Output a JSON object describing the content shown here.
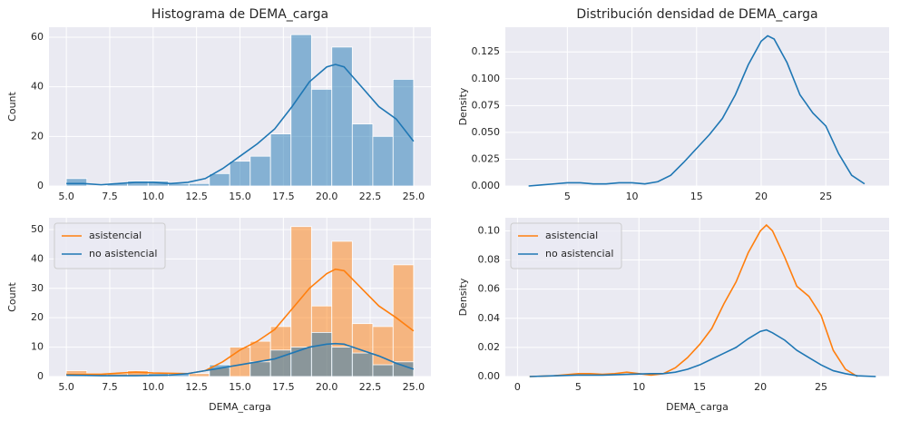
{
  "chart_data": [
    {
      "type": "histogram",
      "title": "Histograma de DEMA_carga",
      "ylabel": "Count",
      "bins": [
        5,
        6.18,
        7.35,
        8.53,
        9.71,
        10.88,
        12.06,
        13.24,
        14.41,
        15.59,
        16.76,
        17.94,
        19.12,
        20.29,
        21.47,
        22.65,
        23.82,
        25
      ],
      "values": [
        3,
        0,
        1,
        2,
        2,
        1,
        1,
        5,
        10,
        12,
        21,
        61,
        39,
        56,
        25,
        20,
        43
      ],
      "color": "#1f77b4",
      "line": {
        "x": [
          5,
          6,
          7,
          8,
          9,
          10,
          11,
          12,
          13,
          14,
          15,
          16,
          17,
          18,
          19,
          20,
          20.5,
          21,
          22,
          23,
          24,
          25
        ],
        "values": [
          1,
          1,
          0.5,
          1,
          1.5,
          1.5,
          1,
          1.5,
          3,
          7,
          12,
          17,
          23,
          32,
          42,
          48,
          49,
          48,
          40,
          32,
          27,
          18
        ]
      },
      "xlim": [
        4,
        26
      ],
      "ylim": [
        0,
        64
      ],
      "xticks": [
        {
          "value": 5,
          "label": "5.0"
        },
        7.5,
        {
          "value": 10,
          "label": "10.0"
        },
        12.5,
        {
          "value": 15,
          "label": "15.0"
        },
        17.5,
        {
          "value": 20,
          "label": "20.0"
        },
        22.5,
        {
          "value": 25,
          "label": "25.0"
        }
      ],
      "yticks": [
        0,
        20,
        40,
        60
      ],
      "grid": true
    },
    {
      "type": "density",
      "title": "Distribución densidad de DEMA_carga",
      "ylabel": "Density",
      "x": [
        2,
        3,
        4,
        5,
        6,
        7,
        8,
        9,
        10,
        11,
        12,
        13,
        14,
        15,
        16,
        17,
        18,
        19,
        20,
        20.5,
        21,
        22,
        23,
        24,
        25,
        26,
        27,
        28
      ],
      "values": [
        0,
        0.001,
        0.002,
        0.003,
        0.003,
        0.002,
        0.002,
        0.003,
        0.003,
        0.002,
        0.004,
        0.01,
        0.022,
        0.035,
        0.048,
        0.063,
        0.085,
        0.113,
        0.135,
        0.14,
        0.137,
        0.115,
        0.085,
        0.068,
        0.056,
        0.03,
        0.01,
        0.002
      ],
      "color": "#1f77b4",
      "xlim": [
        0.2,
        29.9
      ],
      "ylim": [
        0,
        0.148
      ],
      "xticks": [
        5,
        10,
        15,
        20,
        25
      ],
      "yticks": [
        {
          "value": 0,
          "label": "0.000"
        },
        0.025,
        {
          "value": 0.05,
          "label": "0.050"
        },
        0.075,
        {
          "value": 0.1,
          "label": "0.100"
        },
        0.125
      ],
      "grid": true
    },
    {
      "type": "histogram",
      "xlabel": "DEMA_carga",
      "ylabel": "Count",
      "legend": "upper left",
      "bins": [
        5,
        6.18,
        7.35,
        8.53,
        9.71,
        10.88,
        12.06,
        13.24,
        14.41,
        15.59,
        16.76,
        17.94,
        19.12,
        20.29,
        21.47,
        22.65,
        23.82,
        25
      ],
      "series": [
        {
          "name": "asistencial",
          "color": "#ff7f0e",
          "values": [
            2,
            1,
            1,
            2,
            1,
            0,
            1,
            3,
            10,
            12,
            17,
            51,
            24,
            46,
            18,
            17,
            38
          ],
          "line": {
            "x": [
              5,
              7,
              9,
              10,
              12,
              13,
              14,
              15,
              16,
              17,
              18,
              19,
              20,
              20.5,
              21,
              22,
              23,
              24,
              25
            ],
            "values": [
              0.8,
              0.8,
              1.5,
              1.2,
              1,
              2,
              5,
              9,
              12,
              16,
              23,
              30,
              35,
              36.5,
              36,
              30,
              24,
              20,
              15.5
            ]
          }
        },
        {
          "name": "no asistencial",
          "color": "#1f77b4",
          "values": [
            1,
            0,
            0,
            0,
            1,
            1,
            0,
            4,
            0,
            5,
            9,
            10,
            15,
            10,
            8,
            4,
            5
          ],
          "line": {
            "x": [
              5,
              7,
              9,
              11,
              12,
              13,
              14,
              15,
              16,
              17,
              18,
              19,
              20,
              20.5,
              21,
              22,
              23,
              24,
              25
            ],
            "values": [
              0.5,
              0.3,
              0.3,
              0.5,
              1,
              2,
              3,
              4,
              5,
              6,
              8,
              10,
              11,
              11.2,
              11,
              9,
              7,
              4.5,
              2.5
            ]
          }
        }
      ],
      "xlim": [
        4,
        26
      ],
      "ylim": [
        0,
        54
      ],
      "xticks": [
        {
          "value": 5,
          "label": "5.0"
        },
        7.5,
        {
          "value": 10,
          "label": "10.0"
        },
        12.5,
        {
          "value": 15,
          "label": "15.0"
        },
        17.5,
        {
          "value": 20,
          "label": "20.0"
        },
        22.5,
        {
          "value": 25,
          "label": "25.0"
        }
      ],
      "yticks": [
        0,
        10,
        20,
        30,
        40,
        50
      ],
      "grid": true
    },
    {
      "type": "density",
      "xlabel": "DEMA_carga",
      "ylabel": "Density",
      "legend": "upper left",
      "series": [
        {
          "name": "asistencial",
          "color": "#ff7f0e",
          "x": [
            1,
            3,
            5,
            6,
            7,
            8,
            9,
            10,
            11,
            12,
            13,
            14,
            15,
            16,
            17,
            18,
            19,
            20,
            20.5,
            21,
            22,
            23,
            24,
            25,
            26,
            27,
            28
          ],
          "values": [
            0,
            0.0005,
            0.002,
            0.002,
            0.0015,
            0.002,
            0.003,
            0.002,
            0.001,
            0.002,
            0.006,
            0.013,
            0.022,
            0.033,
            0.05,
            0.065,
            0.085,
            0.1,
            0.104,
            0.1,
            0.082,
            0.062,
            0.055,
            0.042,
            0.018,
            0.005,
            0
          ]
        },
        {
          "name": "no asistencial",
          "color": "#1f77b4",
          "x": [
            1,
            3,
            5,
            7,
            9,
            11,
            12,
            13,
            14,
            15,
            16,
            17,
            18,
            19,
            20,
            20.5,
            21,
            22,
            23,
            24,
            25,
            26,
            27,
            28,
            29.5
          ],
          "values": [
            0,
            0.0005,
            0.001,
            0.001,
            0.0015,
            0.002,
            0.002,
            0.003,
            0.005,
            0.008,
            0.012,
            0.016,
            0.02,
            0.026,
            0.031,
            0.032,
            0.03,
            0.025,
            0.018,
            0.013,
            0.008,
            0.004,
            0.002,
            0.0005,
            0
          ]
        }
      ],
      "xlim": [
        -1,
        30.6
      ],
      "ylim": [
        0,
        0.109
      ],
      "xticks": [
        0,
        5,
        10,
        15,
        20,
        25
      ],
      "yticks": [
        {
          "value": 0,
          "label": "0.00"
        },
        0.02,
        0.04,
        0.06,
        0.08,
        {
          "value": 0.1,
          "label": "0.10"
        }
      ],
      "grid": true
    }
  ]
}
